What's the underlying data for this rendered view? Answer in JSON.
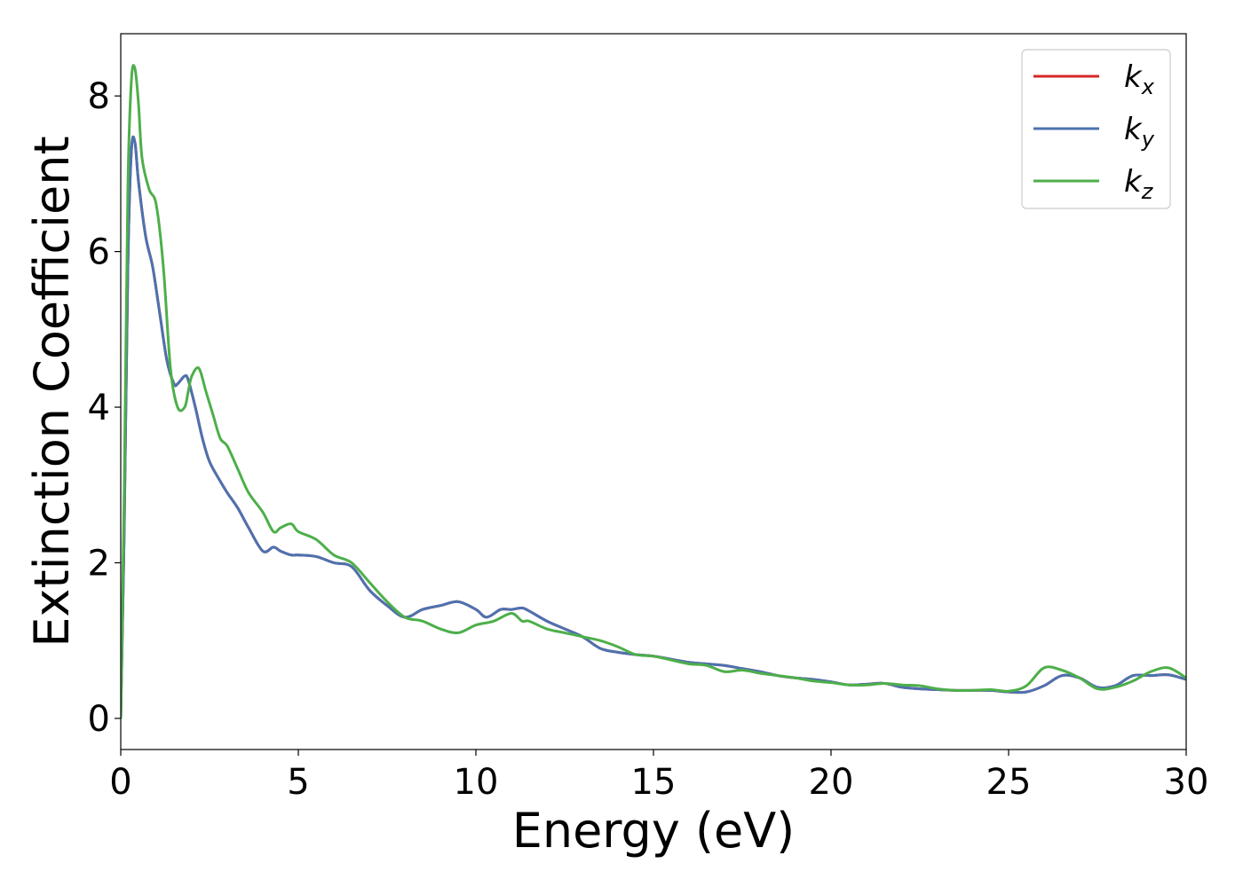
{
  "chart_data": {
    "type": "line",
    "title": "",
    "xlabel": "Energy (eV)",
    "ylabel": "Extinction Coefficient",
    "xlim": [
      0,
      30
    ],
    "ylim": [
      -0.4,
      8.8
    ],
    "xticks": [
      0,
      5,
      10,
      15,
      20,
      25,
      30
    ],
    "yticks": [
      0,
      2,
      4,
      6,
      8
    ],
    "xtick_labels": [
      "0",
      "5",
      "10",
      "15",
      "20",
      "25",
      "30"
    ],
    "ytick_labels": [
      "0",
      "2",
      "4",
      "6",
      "8"
    ],
    "grid": false,
    "legend_position": "top-right",
    "series": [
      {
        "name": "k",
        "subscript": "x",
        "color": "#d62728",
        "x": [
          0,
          0.1,
          0.2,
          0.3,
          0.4,
          0.5,
          0.7,
          0.9,
          1.1,
          1.3,
          1.5,
          1.6,
          1.8,
          1.9,
          2.1,
          2.3,
          2.5,
          2.8,
          3.0,
          3.3,
          3.6,
          4.0,
          4.3,
          4.5,
          4.8,
          5.0,
          5.5,
          6.0,
          6.5,
          7.0,
          7.5,
          8.0,
          8.5,
          9.0,
          9.5,
          10.0,
          10.3,
          10.7,
          11.0,
          11.3,
          11.5,
          12.0,
          12.5,
          13.0,
          13.5,
          14.0,
          14.5,
          15.0,
          15.5,
          16.0,
          16.5,
          17.0,
          17.5,
          18.0,
          18.5,
          19.0,
          19.5,
          20.0,
          20.5,
          21.0,
          21.5,
          22.0,
          22.5,
          23.0,
          23.5,
          24.0,
          24.5,
          25.0,
          25.5,
          26.0,
          26.5,
          27.0,
          27.5,
          28.0,
          28.5,
          29.0,
          29.5,
          30.0
        ],
        "y": [
          0.0,
          2.5,
          5.8,
          7.3,
          7.4,
          6.9,
          6.2,
          5.8,
          5.2,
          4.6,
          4.3,
          4.3,
          4.4,
          4.35,
          4.0,
          3.6,
          3.3,
          3.05,
          2.9,
          2.7,
          2.45,
          2.15,
          2.2,
          2.15,
          2.1,
          2.1,
          2.08,
          2.0,
          1.95,
          1.65,
          1.45,
          1.3,
          1.4,
          1.45,
          1.5,
          1.4,
          1.3,
          1.4,
          1.4,
          1.42,
          1.38,
          1.25,
          1.15,
          1.05,
          0.9,
          0.85,
          0.82,
          0.8,
          0.76,
          0.72,
          0.7,
          0.68,
          0.64,
          0.6,
          0.55,
          0.52,
          0.5,
          0.47,
          0.43,
          0.44,
          0.45,
          0.4,
          0.38,
          0.37,
          0.36,
          0.36,
          0.36,
          0.34,
          0.34,
          0.42,
          0.55,
          0.52,
          0.4,
          0.42,
          0.55,
          0.55,
          0.56,
          0.5
        ]
      },
      {
        "name": "k",
        "subscript": "y",
        "color": "#4c72b0",
        "x": [
          0,
          0.1,
          0.2,
          0.3,
          0.4,
          0.5,
          0.7,
          0.9,
          1.1,
          1.3,
          1.5,
          1.6,
          1.8,
          1.9,
          2.1,
          2.3,
          2.5,
          2.8,
          3.0,
          3.3,
          3.6,
          4.0,
          4.3,
          4.5,
          4.8,
          5.0,
          5.5,
          6.0,
          6.5,
          7.0,
          7.5,
          8.0,
          8.5,
          9.0,
          9.5,
          10.0,
          10.3,
          10.7,
          11.0,
          11.3,
          11.5,
          12.0,
          12.5,
          13.0,
          13.5,
          14.0,
          14.5,
          15.0,
          15.5,
          16.0,
          16.5,
          17.0,
          17.5,
          18.0,
          18.5,
          19.0,
          19.5,
          20.0,
          20.5,
          21.0,
          21.5,
          22.0,
          22.5,
          23.0,
          23.5,
          24.0,
          24.5,
          25.0,
          25.5,
          26.0,
          26.5,
          27.0,
          27.5,
          28.0,
          28.5,
          29.0,
          29.5,
          30.0
        ],
        "y": [
          0.0,
          2.5,
          5.8,
          7.3,
          7.4,
          6.9,
          6.2,
          5.8,
          5.2,
          4.6,
          4.3,
          4.3,
          4.4,
          4.35,
          4.0,
          3.6,
          3.3,
          3.05,
          2.9,
          2.7,
          2.45,
          2.15,
          2.2,
          2.15,
          2.1,
          2.1,
          2.08,
          2.0,
          1.95,
          1.65,
          1.45,
          1.3,
          1.4,
          1.45,
          1.5,
          1.4,
          1.3,
          1.4,
          1.4,
          1.42,
          1.38,
          1.25,
          1.15,
          1.05,
          0.9,
          0.85,
          0.82,
          0.8,
          0.76,
          0.72,
          0.7,
          0.68,
          0.64,
          0.6,
          0.55,
          0.52,
          0.5,
          0.47,
          0.43,
          0.44,
          0.45,
          0.4,
          0.38,
          0.37,
          0.36,
          0.36,
          0.36,
          0.34,
          0.34,
          0.42,
          0.55,
          0.52,
          0.4,
          0.42,
          0.55,
          0.55,
          0.56,
          0.5
        ]
      },
      {
        "name": "k",
        "subscript": "z",
        "color": "#4daf4a",
        "x": [
          0,
          0.1,
          0.2,
          0.3,
          0.4,
          0.5,
          0.6,
          0.8,
          1.0,
          1.2,
          1.4,
          1.6,
          1.8,
          1.9,
          2.0,
          2.2,
          2.4,
          2.6,
          2.8,
          3.0,
          3.3,
          3.6,
          4.0,
          4.3,
          4.5,
          4.8,
          5.0,
          5.5,
          6.0,
          6.5,
          7.0,
          7.5,
          8.0,
          8.5,
          9.0,
          9.5,
          10.0,
          10.5,
          11.0,
          11.3,
          11.5,
          12.0,
          12.5,
          13.0,
          13.5,
          14.0,
          14.5,
          15.0,
          15.5,
          16.0,
          16.5,
          17.0,
          17.5,
          18.0,
          18.5,
          19.0,
          19.5,
          20.0,
          20.5,
          21.0,
          21.5,
          22.0,
          22.5,
          23.0,
          23.5,
          24.0,
          24.5,
          25.0,
          25.5,
          26.0,
          26.5,
          27.0,
          27.5,
          28.0,
          28.5,
          29.0,
          29.5,
          30.0
        ],
        "y": [
          0.0,
          3.0,
          6.8,
          8.2,
          8.35,
          7.9,
          7.2,
          6.8,
          6.6,
          5.8,
          4.5,
          4.0,
          4.0,
          4.2,
          4.4,
          4.5,
          4.2,
          3.9,
          3.6,
          3.5,
          3.2,
          2.9,
          2.65,
          2.4,
          2.45,
          2.5,
          2.4,
          2.3,
          2.1,
          2.0,
          1.75,
          1.5,
          1.3,
          1.25,
          1.15,
          1.1,
          1.2,
          1.25,
          1.35,
          1.25,
          1.25,
          1.15,
          1.1,
          1.05,
          1.0,
          0.92,
          0.82,
          0.8,
          0.75,
          0.7,
          0.68,
          0.6,
          0.62,
          0.58,
          0.55,
          0.52,
          0.48,
          0.46,
          0.43,
          0.43,
          0.45,
          0.43,
          0.42,
          0.38,
          0.36,
          0.36,
          0.37,
          0.35,
          0.42,
          0.65,
          0.62,
          0.52,
          0.38,
          0.4,
          0.48,
          0.6,
          0.65,
          0.52
        ]
      }
    ]
  }
}
